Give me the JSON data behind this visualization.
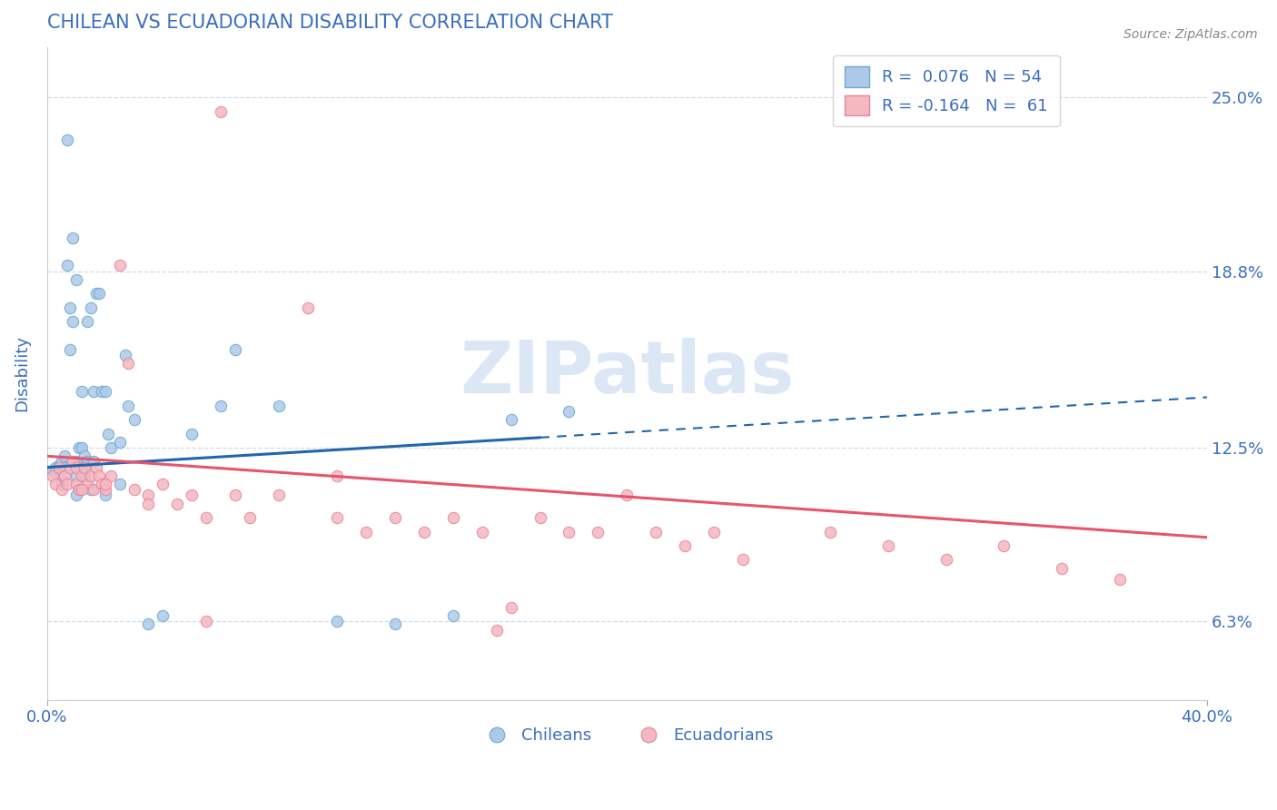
{
  "title": "CHILEAN VS ECUADORIAN DISABILITY CORRELATION CHART",
  "source": "Source: ZipAtlas.com",
  "ylabel": "Disability",
  "xmin": 0.0,
  "xmax": 0.4,
  "ymin": 0.035,
  "ymax": 0.268,
  "yticks": [
    0.063,
    0.125,
    0.188,
    0.25
  ],
  "ytick_labels": [
    "6.3%",
    "12.5%",
    "18.8%",
    "25.0%"
  ],
  "xticks": [
    0.0,
    0.4
  ],
  "xtick_labels": [
    "0.0%",
    "40.0%"
  ],
  "r_chileans": 0.076,
  "n_chileans": 54,
  "r_ecuadorians": -0.164,
  "n_ecuadorians": 61,
  "blue_fill": "#aec9e8",
  "pink_fill": "#f4b8c1",
  "blue_edge": "#6fa8d0",
  "pink_edge": "#e8849a",
  "blue_line_color": "#2166ac",
  "pink_line_color": "#e8546a",
  "title_color": "#3a6ebf",
  "tick_color": "#3a6ebf",
  "source_color": "#888888",
  "watermark_color": "#c5d8f0",
  "grid_color": "#d0dae8",
  "chilean_x": [
    0.002,
    0.003,
    0.004,
    0.005,
    0.005,
    0.006,
    0.006,
    0.007,
    0.007,
    0.008,
    0.008,
    0.009,
    0.009,
    0.01,
    0.01,
    0.01,
    0.011,
    0.011,
    0.012,
    0.012,
    0.012,
    0.013,
    0.013,
    0.014,
    0.014,
    0.015,
    0.016,
    0.016,
    0.017,
    0.018,
    0.019,
    0.02,
    0.021,
    0.022,
    0.025,
    0.027,
    0.028,
    0.03,
    0.035,
    0.04,
    0.05,
    0.06,
    0.065,
    0.08,
    0.1,
    0.12,
    0.14,
    0.16,
    0.18,
    0.005,
    0.01,
    0.015,
    0.02,
    0.025
  ],
  "chilean_y": [
    0.117,
    0.118,
    0.119,
    0.115,
    0.12,
    0.118,
    0.122,
    0.235,
    0.19,
    0.16,
    0.175,
    0.2,
    0.17,
    0.12,
    0.115,
    0.185,
    0.125,
    0.11,
    0.118,
    0.125,
    0.145,
    0.115,
    0.122,
    0.17,
    0.12,
    0.175,
    0.12,
    0.145,
    0.18,
    0.18,
    0.145,
    0.145,
    0.13,
    0.125,
    0.127,
    0.158,
    0.14,
    0.135,
    0.062,
    0.065,
    0.13,
    0.14,
    0.16,
    0.14,
    0.063,
    0.062,
    0.065,
    0.135,
    0.138,
    0.112,
    0.108,
    0.11,
    0.108,
    0.112
  ],
  "ecuadorian_x": [
    0.002,
    0.003,
    0.004,
    0.005,
    0.006,
    0.007,
    0.008,
    0.009,
    0.01,
    0.01,
    0.011,
    0.012,
    0.013,
    0.014,
    0.015,
    0.016,
    0.017,
    0.018,
    0.019,
    0.02,
    0.022,
    0.025,
    0.028,
    0.03,
    0.035,
    0.04,
    0.045,
    0.05,
    0.055,
    0.06,
    0.065,
    0.07,
    0.08,
    0.09,
    0.1,
    0.11,
    0.12,
    0.13,
    0.14,
    0.15,
    0.16,
    0.17,
    0.18,
    0.19,
    0.2,
    0.21,
    0.22,
    0.23,
    0.24,
    0.27,
    0.29,
    0.31,
    0.33,
    0.35,
    0.37,
    0.012,
    0.02,
    0.035,
    0.055,
    0.1,
    0.155
  ],
  "ecuadorian_y": [
    0.115,
    0.112,
    0.118,
    0.11,
    0.115,
    0.112,
    0.118,
    0.12,
    0.112,
    0.118,
    0.11,
    0.115,
    0.118,
    0.112,
    0.115,
    0.11,
    0.118,
    0.115,
    0.112,
    0.11,
    0.115,
    0.19,
    0.155,
    0.11,
    0.108,
    0.112,
    0.105,
    0.108,
    0.1,
    0.245,
    0.108,
    0.1,
    0.108,
    0.175,
    0.1,
    0.095,
    0.1,
    0.095,
    0.1,
    0.095,
    0.068,
    0.1,
    0.095,
    0.095,
    0.108,
    0.095,
    0.09,
    0.095,
    0.085,
    0.095,
    0.09,
    0.085,
    0.09,
    0.082,
    0.078,
    0.11,
    0.112,
    0.105,
    0.063,
    0.115,
    0.06
  ],
  "blue_line_x0": 0.0,
  "blue_line_x1": 0.4,
  "blue_line_y0": 0.118,
  "blue_line_y1": 0.143,
  "blue_solid_xend": 0.17,
  "pink_line_x0": 0.0,
  "pink_line_x1": 0.4,
  "pink_line_y0": 0.122,
  "pink_line_y1": 0.093
}
